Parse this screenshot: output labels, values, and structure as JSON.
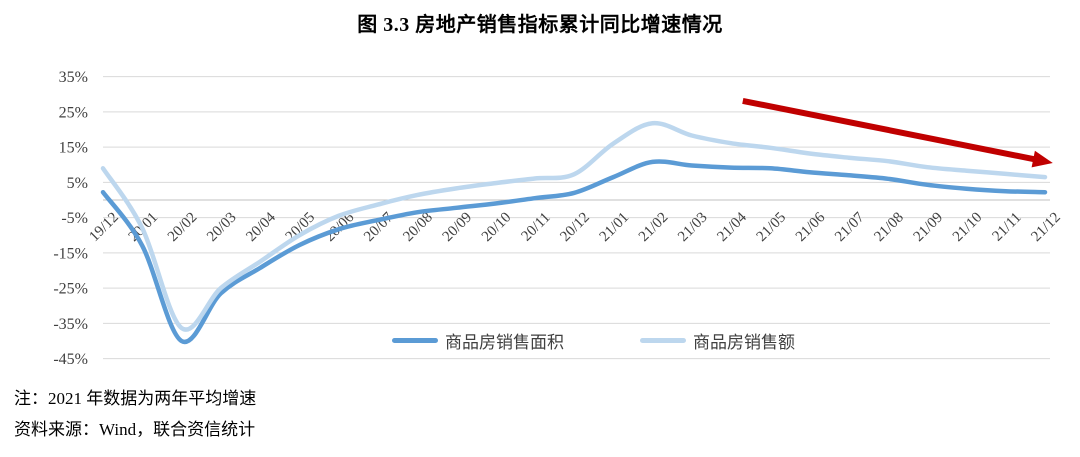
{
  "title": "图 3.3  房地产销售指标累计同比增速情况",
  "notes": [
    "注：2021 年数据为两年平均增速",
    "资料来源：Wind，联合资信统计"
  ],
  "colors": {
    "series_area": "#5B9BD5",
    "series_amount": "#BDD7EE",
    "arrow": "#C00000",
    "gridline": "#D9D9D9",
    "zero_axis": "#C0C0C0",
    "tick_label": "#404040"
  },
  "chart_data": {
    "type": "line",
    "title": "图 3.3  房地产销售指标累计同比增速情况",
    "categories": [
      "19/12",
      "20/01",
      "20/02",
      "20/03",
      "20/04",
      "20/05",
      "20/06",
      "20/07",
      "20/08",
      "20/09",
      "20/10",
      "20/11",
      "20/12",
      "21/01",
      "21/02",
      "21/03",
      "21/04",
      "21/05",
      "21/06",
      "21/07",
      "21/08",
      "21/09",
      "21/10",
      "21/11",
      "21/12"
    ],
    "series": [
      {
        "name": "商品房销售面积",
        "color": "#5B9BD5",
        "values": [
          2.2,
          -13,
          -40,
          -26.5,
          -19.3,
          -12.8,
          -8.3,
          -5.7,
          -3.5,
          -2.2,
          -1,
          0.5,
          2,
          6.5,
          10.8,
          9.8,
          9.2,
          9,
          7.9,
          7,
          6,
          4.3,
          3.2,
          2.5,
          2.2
        ]
      },
      {
        "name": "商品房销售额",
        "color": "#BDD7EE",
        "values": [
          9,
          -8,
          -36.3,
          -25,
          -17.5,
          -10,
          -4.5,
          -1.3,
          1.4,
          3.3,
          4.8,
          6.1,
          7.3,
          16,
          21.8,
          18.3,
          16.1,
          14.8,
          13.2,
          12,
          11,
          9.3,
          8.3,
          7.4,
          6.5
        ]
      }
    ],
    "yticks": [
      35,
      25,
      15,
      5,
      -5,
      -15,
      -25,
      -35,
      -45
    ],
    "ytick_suffix": "%",
    "ylim": [
      -45,
      35
    ],
    "grid": true,
    "legend_position": "bottom-center",
    "annotation": {
      "type": "arrow",
      "color": "#C00000",
      "from": {
        "x": 16.3,
        "y": 28.1
      },
      "to": {
        "x": 24.2,
        "y": 10.5
      }
    }
  }
}
